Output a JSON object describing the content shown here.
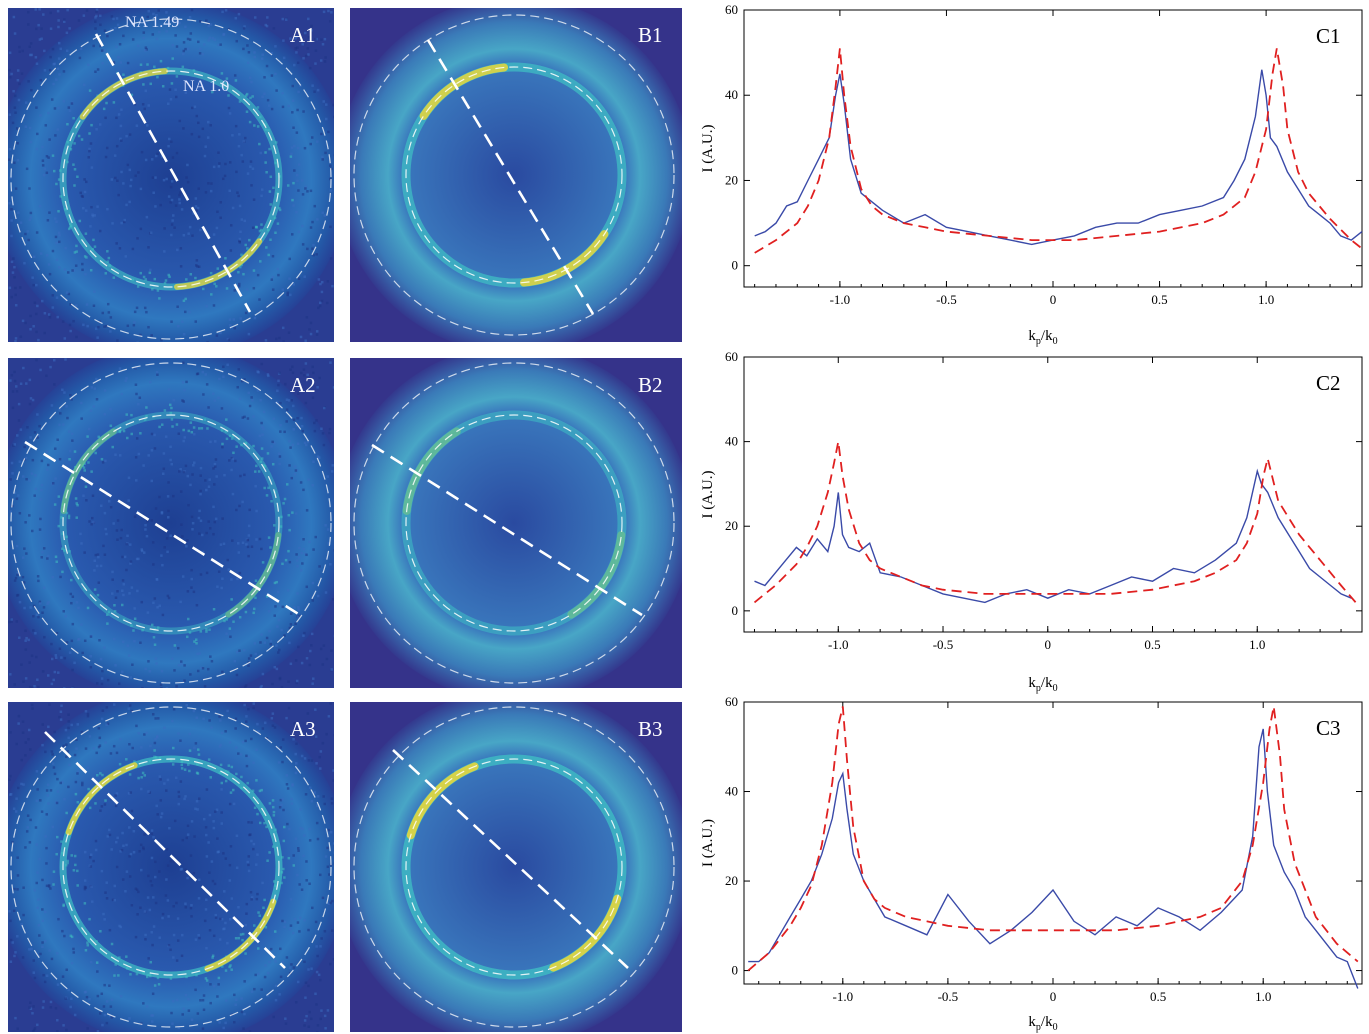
{
  "panels": [
    {
      "id": "A1",
      "label": "A1",
      "kind": "measured",
      "intensity": 0.75,
      "asym": 0.7,
      "noise": 0.55,
      "ringMode": "ring",
      "na_outer": "NA 1.49",
      "na_inner": "NA 1.0"
    },
    {
      "id": "B1",
      "label": "B1",
      "kind": "simulated",
      "intensity": 0.9,
      "asym": 0.85,
      "ringMode": "ring"
    },
    {
      "id": "A2",
      "label": "A2",
      "kind": "measured",
      "intensity": 0.45,
      "asym": 0.3,
      "noise": 0.5,
      "ringMode": "ring"
    },
    {
      "id": "B2",
      "label": "B2",
      "kind": "simulated",
      "intensity": 0.6,
      "asym": 0.3,
      "ringMode": "ring"
    },
    {
      "id": "A3",
      "label": "A3",
      "kind": "measured",
      "intensity": 0.9,
      "asym": 0.8,
      "noise": 0.55,
      "ringMode": "ring"
    },
    {
      "id": "B3",
      "label": "B3",
      "kind": "simulated",
      "intensity": 1.0,
      "asym": 0.9,
      "ringMode": "ring"
    }
  ],
  "chart_data": [
    {
      "type": "line",
      "label": "C1",
      "xlabel_main": "k",
      "xlabel_sub1": "p",
      "xlabel_mid": "/k",
      "xlabel_sub2": "0",
      "ylabel": "I (A.U.)",
      "xlim": [
        -1.45,
        1.45
      ],
      "ylim": [
        -5,
        60
      ],
      "xticks": [
        -1.0,
        -0.5,
        0,
        0.5,
        1.0
      ],
      "xtick_labels": [
        "-1.0",
        "-0.5",
        "0",
        "0.5",
        "1.0"
      ],
      "yticks": [
        0,
        20,
        40,
        60
      ],
      "ytick_labels": [
        "0",
        "20",
        "40",
        "60"
      ],
      "series": [
        {
          "style": "solid",
          "color": "#3a4aa8",
          "x": [
            -1.4,
            -1.35,
            -1.3,
            -1.25,
            -1.2,
            -1.15,
            -1.1,
            -1.05,
            -1.02,
            -1.0,
            -0.98,
            -0.95,
            -0.9,
            -0.85,
            -0.8,
            -0.7,
            -0.6,
            -0.5,
            -0.4,
            -0.3,
            -0.2,
            -0.1,
            0,
            0.1,
            0.2,
            0.3,
            0.4,
            0.5,
            0.6,
            0.7,
            0.8,
            0.85,
            0.9,
            0.95,
            0.98,
            1.0,
            1.02,
            1.05,
            1.1,
            1.15,
            1.2,
            1.25,
            1.3,
            1.35,
            1.4,
            1.45
          ],
          "y": [
            7,
            8,
            10,
            14,
            15,
            20,
            25,
            30,
            40,
            45,
            38,
            25,
            17,
            15,
            13,
            10,
            12,
            9,
            8,
            7,
            6,
            5,
            6,
            7,
            9,
            10,
            10,
            12,
            13,
            14,
            16,
            20,
            25,
            35,
            46,
            40,
            30,
            28,
            22,
            18,
            14,
            12,
            10,
            7,
            6,
            8
          ]
        },
        {
          "style": "dashed",
          "color": "#e02020",
          "x": [
            -1.4,
            -1.3,
            -1.2,
            -1.15,
            -1.1,
            -1.05,
            -1.02,
            -1.0,
            -0.98,
            -0.95,
            -0.9,
            -0.85,
            -0.8,
            -0.7,
            -0.6,
            -0.5,
            -0.3,
            -0.1,
            0,
            0.1,
            0.3,
            0.5,
            0.7,
            0.8,
            0.9,
            0.95,
            1.0,
            1.03,
            1.05,
            1.08,
            1.1,
            1.15,
            1.2,
            1.3,
            1.4,
            1.45
          ],
          "y": [
            3,
            6,
            10,
            14,
            20,
            30,
            42,
            51,
            40,
            28,
            18,
            14,
            12,
            10,
            9,
            8,
            7,
            6,
            6,
            6,
            7,
            8,
            10,
            12,
            16,
            22,
            32,
            45,
            51,
            42,
            32,
            22,
            17,
            11,
            6,
            4
          ]
        }
      ]
    },
    {
      "type": "line",
      "label": "C2",
      "xlabel_main": "k",
      "xlabel_sub1": "p",
      "xlabel_mid": "/k",
      "xlabel_sub2": "0",
      "ylabel": "I (A.U.)",
      "xlim": [
        -1.45,
        1.5
      ],
      "ylim": [
        -5,
        60
      ],
      "xticks": [
        -1.0,
        -0.5,
        0,
        0.5,
        1.0
      ],
      "xtick_labels": [
        "-1.0",
        "-0.5",
        "0",
        "0.5",
        "1.0"
      ],
      "yticks": [
        0,
        20,
        40,
        60
      ],
      "ytick_labels": [
        "0",
        "20",
        "40",
        "60"
      ],
      "series": [
        {
          "style": "solid",
          "color": "#3a4aa8",
          "x": [
            -1.4,
            -1.35,
            -1.3,
            -1.25,
            -1.2,
            -1.15,
            -1.1,
            -1.05,
            -1.02,
            -1.0,
            -0.98,
            -0.95,
            -0.9,
            -0.85,
            -0.8,
            -0.7,
            -0.6,
            -0.5,
            -0.4,
            -0.3,
            -0.2,
            -0.1,
            0,
            0.1,
            0.2,
            0.3,
            0.4,
            0.5,
            0.6,
            0.7,
            0.8,
            0.9,
            0.95,
            1.0,
            1.02,
            1.05,
            1.1,
            1.15,
            1.2,
            1.25,
            1.3,
            1.35,
            1.4,
            1.45
          ],
          "y": [
            7,
            6,
            9,
            12,
            15,
            13,
            17,
            14,
            20,
            28,
            18,
            15,
            14,
            16,
            9,
            8,
            6,
            4,
            3,
            2,
            4,
            5,
            3,
            5,
            4,
            6,
            8,
            7,
            10,
            9,
            12,
            16,
            22,
            33,
            30,
            28,
            22,
            18,
            14,
            10,
            8,
            6,
            4,
            3
          ]
        },
        {
          "style": "dashed",
          "color": "#e02020",
          "x": [
            -1.4,
            -1.3,
            -1.2,
            -1.15,
            -1.1,
            -1.05,
            -1.02,
            -1.0,
            -0.98,
            -0.95,
            -0.9,
            -0.85,
            -0.8,
            -0.7,
            -0.6,
            -0.5,
            -0.3,
            -0.1,
            0,
            0.1,
            0.3,
            0.5,
            0.7,
            0.8,
            0.9,
            0.95,
            1.0,
            1.03,
            1.05,
            1.08,
            1.1,
            1.15,
            1.2,
            1.3,
            1.4,
            1.47
          ],
          "y": [
            2,
            6,
            11,
            15,
            20,
            28,
            35,
            40,
            32,
            24,
            16,
            12,
            10,
            8,
            6,
            5,
            4,
            4,
            4,
            4,
            4,
            5,
            7,
            9,
            12,
            16,
            23,
            32,
            36,
            30,
            26,
            22,
            18,
            12,
            6,
            2
          ]
        }
      ]
    },
    {
      "type": "line",
      "label": "C3",
      "xlabel_main": "k",
      "xlabel_sub1": "p",
      "xlabel_mid": "/k",
      "xlabel_sub2": "0",
      "ylabel": "I (A.U.)",
      "xlim": [
        -1.47,
        1.47
      ],
      "ylim": [
        -3,
        60
      ],
      "xticks": [
        -1.0,
        -0.5,
        0,
        0.5,
        1.0
      ],
      "xtick_labels": [
        "-1.0",
        "-0.5",
        "0",
        "0.5",
        "1.0"
      ],
      "yticks": [
        0,
        20,
        40,
        60
      ],
      "ytick_labels": [
        "0",
        "20",
        "40",
        "60"
      ],
      "series": [
        {
          "style": "solid",
          "color": "#3a4aa8",
          "x": [
            -1.45,
            -1.4,
            -1.35,
            -1.3,
            -1.25,
            -1.2,
            -1.15,
            -1.1,
            -1.05,
            -1.02,
            -1.0,
            -0.98,
            -0.95,
            -0.9,
            -0.85,
            -0.8,
            -0.7,
            -0.6,
            -0.5,
            -0.4,
            -0.3,
            -0.2,
            -0.1,
            0,
            0.1,
            0.2,
            0.3,
            0.4,
            0.5,
            0.6,
            0.7,
            0.8,
            0.9,
            0.95,
            0.98,
            1.0,
            1.02,
            1.05,
            1.1,
            1.15,
            1.2,
            1.25,
            1.3,
            1.35,
            1.4,
            1.45
          ],
          "y": [
            2,
            2,
            4,
            8,
            12,
            16,
            20,
            26,
            34,
            42,
            44,
            36,
            26,
            20,
            16,
            12,
            10,
            8,
            17,
            11,
            6,
            9,
            13,
            18,
            11,
            8,
            12,
            10,
            14,
            12,
            9,
            13,
            18,
            30,
            50,
            54,
            40,
            28,
            22,
            18,
            12,
            9,
            6,
            3,
            2,
            -4
          ]
        },
        {
          "style": "dashed",
          "color": "#e02020",
          "x": [
            -1.45,
            -1.35,
            -1.25,
            -1.2,
            -1.15,
            -1.1,
            -1.05,
            -1.02,
            -1.0,
            -0.98,
            -0.95,
            -0.9,
            -0.85,
            -0.8,
            -0.7,
            -0.5,
            -0.3,
            -0.1,
            0,
            0.1,
            0.3,
            0.5,
            0.7,
            0.8,
            0.9,
            0.95,
            1.0,
            1.03,
            1.05,
            1.08,
            1.1,
            1.15,
            1.25,
            1.35,
            1.45
          ],
          "y": [
            0,
            4,
            10,
            14,
            19,
            28,
            42,
            55,
            59,
            47,
            32,
            20,
            16,
            14,
            12,
            10,
            9,
            9,
            9,
            9,
            9,
            10,
            12,
            14,
            20,
            28,
            42,
            54,
            59,
            48,
            36,
            24,
            12,
            6,
            2
          ]
        }
      ]
    }
  ]
}
